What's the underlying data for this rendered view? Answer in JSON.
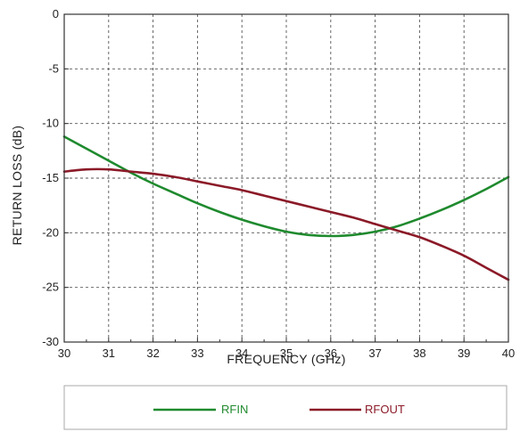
{
  "chart_data": {
    "type": "line",
    "title": "",
    "xlabel": "FREQUENCY (GHz)",
    "ylabel": "RETURN LOSS (dB)",
    "xlim": [
      30,
      40
    ],
    "ylim": [
      -30,
      0
    ],
    "xticks": [
      30,
      31,
      32,
      33,
      34,
      35,
      36,
      37,
      38,
      39,
      40
    ],
    "yticks": [
      0,
      -5,
      -10,
      -15,
      -20,
      -25,
      -30
    ],
    "grid": true,
    "legend_position": "bottom",
    "series": [
      {
        "name": "RFIN",
        "color": "#1f8a2e",
        "x": [
          30,
          30.5,
          31,
          31.5,
          32,
          32.5,
          33,
          33.5,
          34,
          34.5,
          35,
          35.5,
          36,
          36.5,
          37,
          37.5,
          38,
          38.5,
          39,
          39.5,
          40
        ],
        "y": [
          -11.2,
          -12.3,
          -13.4,
          -14.5,
          -15.5,
          -16.4,
          -17.3,
          -18.1,
          -18.8,
          -19.4,
          -19.9,
          -20.2,
          -20.3,
          -20.2,
          -19.9,
          -19.4,
          -18.7,
          -17.9,
          -17.0,
          -16.0,
          -14.9
        ]
      },
      {
        "name": "RFOUT",
        "color": "#8b1a28",
        "x": [
          30,
          30.5,
          31,
          31.5,
          32,
          32.5,
          33,
          33.5,
          34,
          34.5,
          35,
          35.5,
          36,
          36.5,
          37,
          37.5,
          38,
          38.5,
          39,
          39.5,
          40
        ],
        "y": [
          -14.4,
          -14.2,
          -14.2,
          -14.4,
          -14.6,
          -14.9,
          -15.3,
          -15.7,
          -16.1,
          -16.6,
          -17.1,
          -17.6,
          -18.1,
          -18.6,
          -19.2,
          -19.8,
          -20.4,
          -21.2,
          -22.1,
          -23.2,
          -24.3
        ]
      }
    ]
  }
}
